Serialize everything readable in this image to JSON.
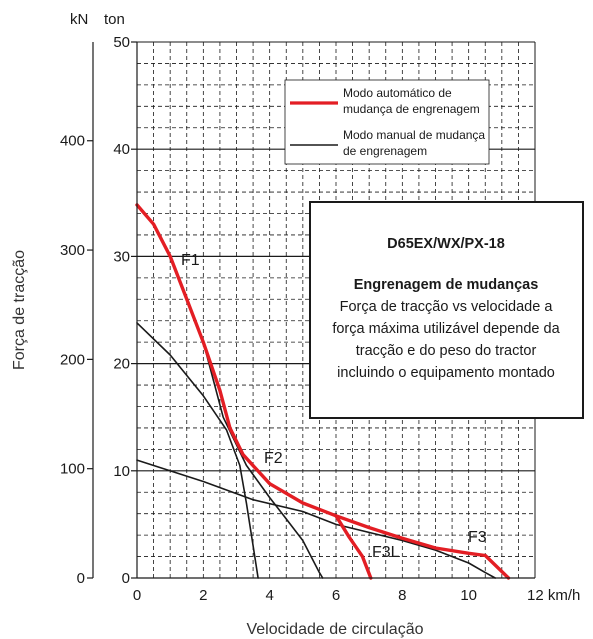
{
  "chart_data": {
    "type": "line",
    "ylabel": "Força de tracção",
    "xlabel": "Velocidade de circulação",
    "x_unit": "km/h",
    "y_units": {
      "kN": "kN",
      "ton": "ton"
    },
    "xlim": [
      0,
      12
    ],
    "ylim_ton": [
      0,
      50
    ],
    "x_ticks": [
      "0",
      "2",
      "4",
      "6",
      "8",
      "10",
      "12 km/h"
    ],
    "y_ticks_ton": [
      "0",
      "10",
      "20",
      "30",
      "40",
      "50"
    ],
    "y_ticks_kN": [
      "0",
      "100",
      "200",
      "300",
      "400"
    ],
    "grid": true,
    "gear_labels": {
      "f1": "F1",
      "f2": "F2",
      "f3": "F3",
      "f3l": "F3L"
    },
    "legend": {
      "position": "top-right",
      "automatic": {
        "line1": "Modo automático de",
        "line2": "mudança de engrenagem",
        "color": "#e31e24"
      },
      "manual": {
        "line1": "Modo manual de mudança",
        "line2": "de engrenagem",
        "color": "#1a1a1a"
      }
    },
    "info_box": {
      "title": "D65EX/WX/PX-18",
      "subtitle": "Engrenagem de mudanças",
      "lines": [
        "Força de tracção vs velocidade a",
        "força máxima utilizável depende da",
        "tracção e do peso do tractor",
        "incluindo o equipamento montado"
      ]
    },
    "series": [
      {
        "name": "Modo automático de mudança de engrenagem",
        "style": "automatic",
        "color": "#e31e24",
        "points": [
          [
            0,
            34.8
          ],
          [
            0.5,
            33
          ],
          [
            1,
            30
          ],
          [
            1.5,
            26
          ],
          [
            2,
            22
          ],
          [
            2.5,
            17.5
          ],
          [
            2.8,
            14
          ],
          [
            3.2,
            11.5
          ],
          [
            4,
            8.8
          ],
          [
            5,
            7
          ],
          [
            6,
            5.8
          ],
          [
            7,
            4.7
          ],
          [
            8,
            3.7
          ],
          [
            9,
            2.8
          ],
          [
            10,
            2.3
          ],
          [
            10.5,
            2.1
          ],
          [
            11.2,
            0
          ]
        ]
      },
      {
        "name": "Modo automático de mudança de engrenagem",
        "style": "automatic",
        "color": "#e31e24",
        "points": [
          [
            6,
            5.8
          ],
          [
            6.4,
            3.8
          ],
          [
            6.8,
            2
          ],
          [
            7.05,
            0
          ]
        ]
      },
      {
        "name": "Modo manual de mudança de engrenagem",
        "style": "manual",
        "color": "#1a1a1a",
        "points": [
          [
            0,
            23.8
          ],
          [
            1,
            20.8
          ],
          [
            2,
            17
          ],
          [
            2.7,
            13.8
          ],
          [
            3.1,
            10.5
          ],
          [
            3.3,
            7
          ],
          [
            3.5,
            3
          ],
          [
            3.65,
            0
          ]
        ]
      },
      {
        "name": "Modo manual de mudança de engrenagem",
        "style": "manual",
        "color": "#1a1a1a",
        "points": [
          [
            2,
            22
          ],
          [
            2.6,
            15
          ],
          [
            3.3,
            10.5
          ],
          [
            4,
            7.5
          ],
          [
            4.5,
            5.5
          ],
          [
            5,
            3.5
          ],
          [
            5.5,
            0.5
          ],
          [
            5.6,
            0
          ]
        ]
      },
      {
        "name": "Modo manual de mudança de engrenagem",
        "style": "manual",
        "color": "#1a1a1a",
        "points": [
          [
            0,
            11
          ],
          [
            2,
            9
          ],
          [
            3.5,
            7.3
          ],
          [
            5,
            6.2
          ],
          [
            6,
            5
          ],
          [
            8,
            3.5
          ],
          [
            9,
            2.6
          ],
          [
            10,
            1.4
          ],
          [
            10.5,
            0.5
          ],
          [
            10.8,
            0
          ]
        ]
      }
    ]
  }
}
